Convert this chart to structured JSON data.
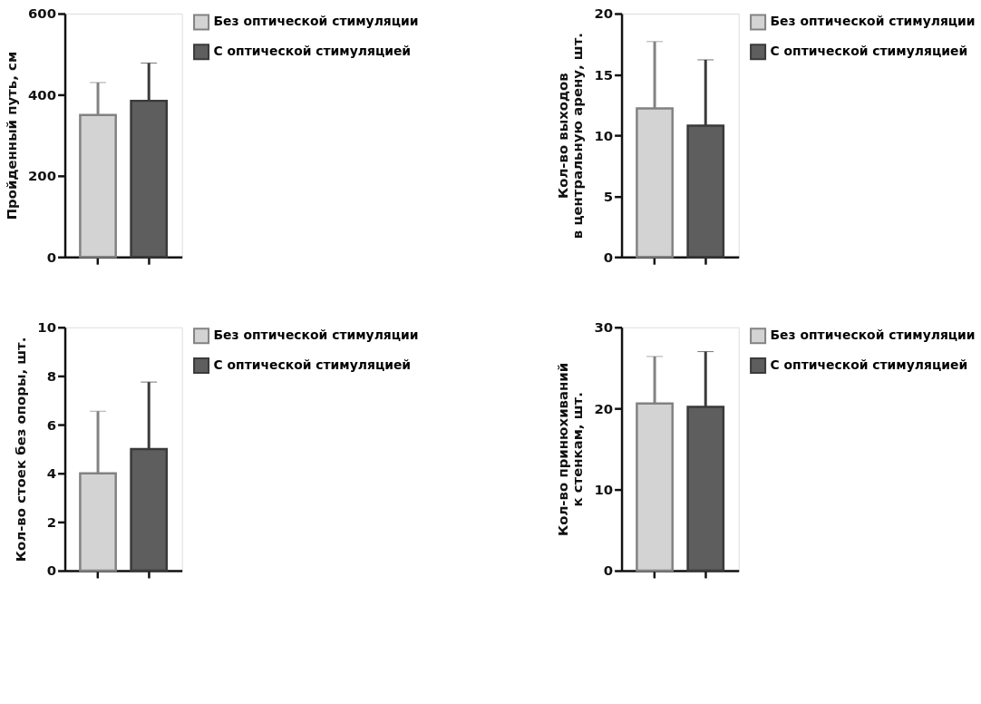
{
  "chart_data": [
    {
      "type": "bar",
      "categories": [
        null,
        null
      ],
      "ylabel": "Пройденный путь, см",
      "ylim": [
        0,
        600
      ],
      "yticks": [
        0,
        200,
        400,
        600
      ],
      "legend": "top right",
      "tick_labels": "y",
      "grid": false,
      "series": [
        {
          "name": "Без оптической стимуляции",
          "color": "#d3d3d3",
          "values": [
            350,
            null
          ],
          "errors": [
            [
              350,
              430
            ],
            null
          ]
        },
        {
          "name": "С оптической стимуляцией",
          "color": "#5e5e5e",
          "values": [
            null,
            385
          ],
          "errors": [
            null,
            [
              385,
              478
            ]
          ]
        }
      ]
    },
    {
      "type": "bar",
      "categories": [
        null,
        null
      ],
      "ylabel": "Кол-во выходов\nв центральную арену, шт.",
      "ylim": [
        0,
        20
      ],
      "yticks": [
        0,
        5,
        10,
        15,
        20
      ],
      "legend": "top right",
      "tick_labels": "y",
      "grid": false,
      "series": [
        {
          "name": "Без оптической стимуляции",
          "color": "#d3d3d3",
          "values": [
            12.2,
            null
          ],
          "errors": [
            [
              12.2,
              17.7
            ],
            null
          ]
        },
        {
          "name": "С оптической стимуляцией",
          "color": "#5e5e5e",
          "values": [
            null,
            10.8
          ],
          "errors": [
            null,
            [
              10.8,
              16.2
            ]
          ]
        }
      ]
    },
    {
      "type": "bar",
      "categories": [
        null,
        null
      ],
      "ylabel": "Кол-во стоек без опоры, шт.",
      "ylim": [
        0,
        10
      ],
      "yticks": [
        0,
        2,
        4,
        6,
        8,
        10
      ],
      "legend": "top right",
      "tick_labels": "y",
      "grid": false,
      "series": [
        {
          "name": "Без оптической стимуляции",
          "color": "#d3d3d3",
          "values": [
            4.0,
            null
          ],
          "errors": [
            [
              4.0,
              6.55
            ],
            null
          ]
        },
        {
          "name": "С оптической стимуляцией",
          "color": "#5e5e5e",
          "values": [
            null,
            5.0
          ],
          "errors": [
            null,
            [
              5.0,
              7.75
            ]
          ]
        }
      ]
    },
    {
      "type": "bar",
      "categories": [
        null,
        null
      ],
      "ylabel": "Кол-во принюхиваний\nк стенкам, шт.",
      "ylim": [
        0,
        30
      ],
      "yticks": [
        0,
        10,
        20,
        30
      ],
      "legend": "top right",
      "tick_labels": "y",
      "grid": false,
      "series": [
        {
          "name": "Без оптической стимуляции",
          "color": "#d3d3d3",
          "values": [
            20.6,
            null
          ],
          "errors": [
            [
              20.6,
              26.4
            ],
            null
          ]
        },
        {
          "name": "С оптической стимуляцией",
          "color": "#5e5e5e",
          "values": [
            null,
            20.2
          ],
          "errors": [
            null,
            [
              20.2,
              27.0
            ]
          ]
        }
      ]
    }
  ]
}
